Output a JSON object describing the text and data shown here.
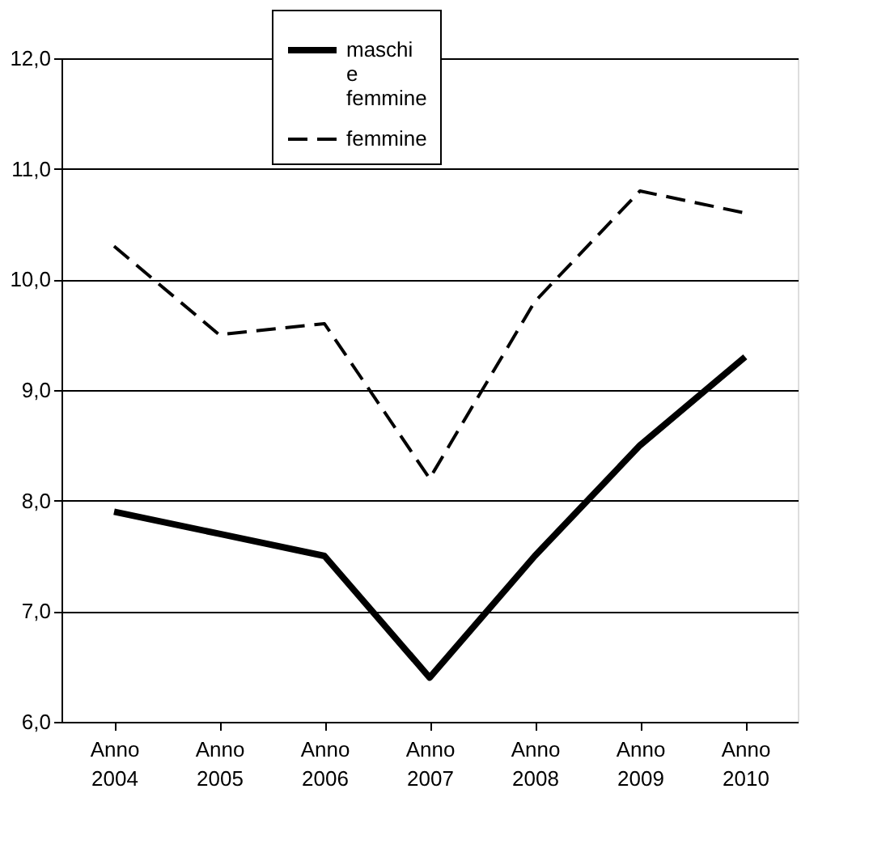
{
  "chart_data": {
    "type": "line",
    "categories": [
      "Anno 2004",
      "Anno 2005",
      "Anno 2006",
      "Anno 2007",
      "Anno 2008",
      "Anno 2009",
      "Anno 2010"
    ],
    "series": [
      {
        "name": "maschi e femmine",
        "color": "#000000",
        "line_style": "solid",
        "values": [
          7.9,
          7.7,
          7.5,
          6.4,
          7.5,
          8.5,
          9.3
        ]
      },
      {
        "name": "femmine",
        "color": "#000000",
        "line_style": "dashed",
        "values": [
          10.3,
          9.5,
          9.6,
          8.2,
          9.8,
          10.8,
          10.6
        ]
      }
    ],
    "ylim": [
      6,
      12
    ],
    "yticks": [
      {
        "value": 6,
        "label": "6,0"
      },
      {
        "value": 7,
        "label": "7,0"
      },
      {
        "value": 8,
        "label": "8,0"
      },
      {
        "value": 9,
        "label": "9,0"
      },
      {
        "value": 10,
        "label": "10,0"
      },
      {
        "value": 11,
        "label": "11,0"
      },
      {
        "value": 12,
        "label": "12,0"
      }
    ],
    "grid": "y",
    "legend": "top",
    "marker": "none"
  }
}
